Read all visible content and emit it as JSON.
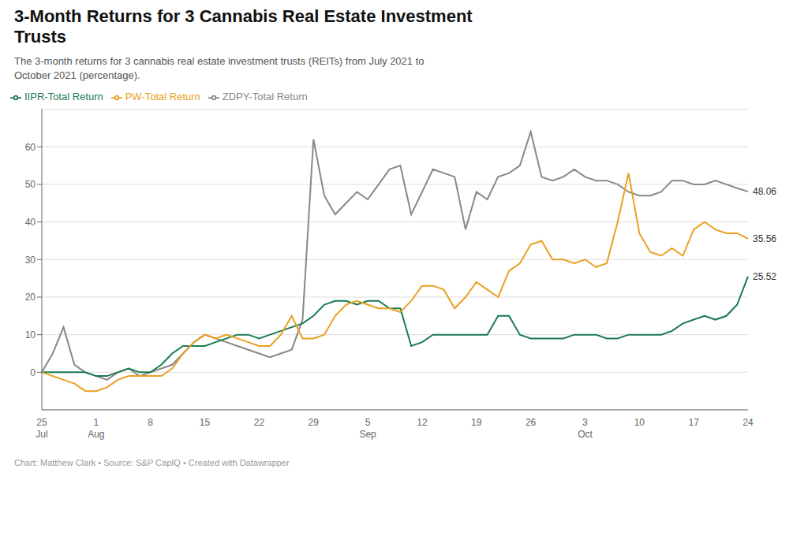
{
  "chart_data": {
    "type": "line",
    "title": "3-Month Returns for 3 Cannabis Real Estate Investment\nTrusts",
    "subtitle": "The 3-month returns for 3 cannabis real estate investment trusts (REITs) from July 2021 to\nOctober 2021 (percentage).",
    "footer": "Chart: Matthew Clark • Source: S&P CapIQ • Created with Datawrapper",
    "categories": [
      "25\nJul",
      null,
      null,
      null,
      null,
      "1\nAug",
      null,
      null,
      null,
      null,
      "8",
      null,
      null,
      null,
      null,
      "15",
      null,
      null,
      null,
      null,
      "22",
      null,
      null,
      null,
      null,
      "29",
      null,
      null,
      null,
      null,
      "5\nSep",
      null,
      null,
      null,
      null,
      "12",
      null,
      null,
      null,
      null,
      "19",
      null,
      null,
      null,
      null,
      "26",
      null,
      null,
      null,
      null,
      "3\nOct",
      null,
      null,
      null,
      null,
      "10",
      null,
      null,
      null,
      null,
      "17",
      null,
      null,
      null,
      null,
      "24"
    ],
    "series": [
      {
        "name": "ZDPY-Total Return",
        "color": "#888888",
        "values": [
          0,
          5,
          12,
          2,
          0,
          -1,
          -2,
          0,
          1,
          -1,
          0,
          1,
          2,
          5,
          8,
          10,
          9,
          8,
          7,
          6,
          5,
          4,
          5,
          6,
          14,
          62,
          47,
          42,
          45,
          48,
          46,
          50,
          54,
          55,
          42,
          48,
          54,
          53,
          52,
          38,
          48,
          46,
          52,
          53,
          55,
          64,
          52,
          51,
          52,
          54,
          52,
          51,
          51,
          50,
          48,
          47,
          47,
          48,
          51,
          51,
          50,
          50,
          51,
          50,
          49,
          48.06
        ]
      },
      {
        "name": "IIPR-Total Return",
        "color": "#1a7a50",
        "values": [
          0,
          0,
          0,
          0,
          0,
          -1,
          -1,
          0,
          1,
          0,
          0,
          2,
          5,
          7,
          7,
          7,
          8,
          9,
          10,
          10,
          9,
          10,
          11,
          12,
          13,
          15,
          18,
          19,
          19,
          18,
          19,
          19,
          17,
          17,
          7,
          8,
          10,
          10,
          10,
          10,
          10,
          10,
          15,
          15,
          10,
          9,
          9,
          9,
          9,
          10,
          10,
          10,
          9,
          9,
          10,
          10,
          10,
          10,
          11,
          13,
          14,
          15,
          14,
          15,
          18,
          25.52
        ]
      },
      {
        "name": "PW-Total Return",
        "color": "#e8a020",
        "values": [
          0,
          -1,
          -2,
          -3,
          -5,
          -5,
          -4,
          -2,
          -1,
          -1,
          -1,
          -1,
          1,
          5,
          8,
          10,
          9,
          10,
          9,
          8,
          7,
          7,
          10,
          15,
          9,
          9,
          10,
          15,
          18,
          19,
          18,
          17,
          17,
          16,
          19,
          23,
          23,
          22,
          17,
          20,
          24,
          22,
          20,
          27,
          29,
          34,
          35,
          30,
          30,
          29,
          30,
          28,
          29,
          40,
          53,
          37,
          32,
          31,
          33,
          31,
          38,
          40,
          38,
          37,
          37,
          35.56
        ]
      }
    ],
    "annotations": [
      {
        "text": "48.06",
        "series": "ZDPY-Total Return"
      },
      {
        "text": "35.56",
        "series": "PW-Total Return"
      },
      {
        "text": "25.52",
        "series": "IIPR-Total Return"
      }
    ],
    "ylim": [
      -10,
      70
    ],
    "yticks": [
      0,
      10,
      20,
      30,
      40,
      50,
      60
    ],
    "grid": true,
    "legend": "top"
  }
}
